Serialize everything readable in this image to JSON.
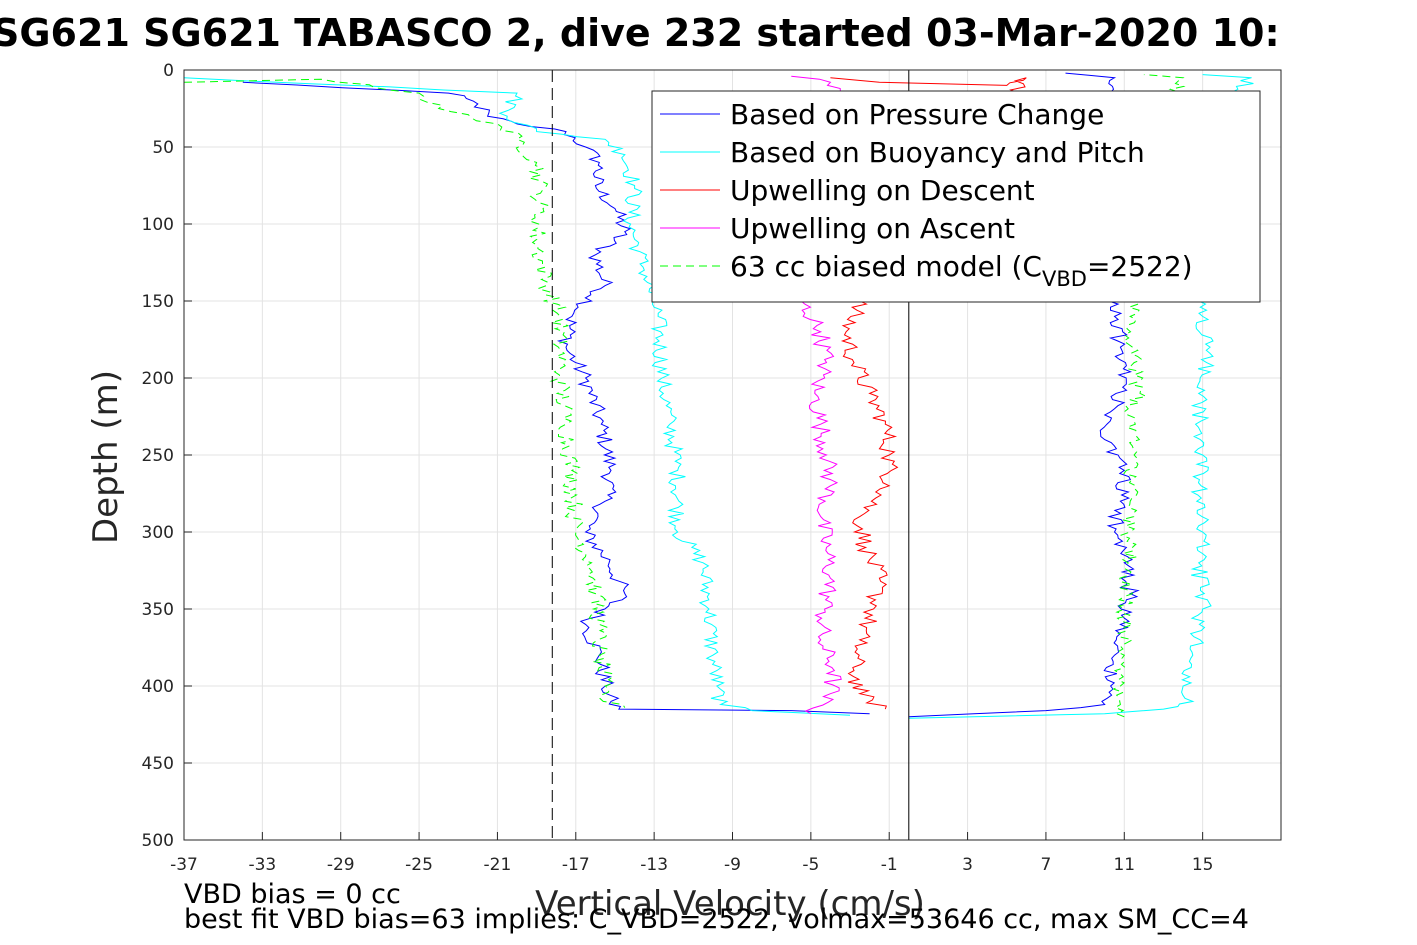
{
  "chart_data": {
    "type": "line",
    "title": "SG621 SG621 TABASCO 2, dive 232 started 03-Mar-2020 10:",
    "xlabel": "Vertical Velocity (cm/s)",
    "ylabel": "Depth (m)",
    "xlim": [
      -37,
      19
    ],
    "ylim": [
      0,
      500
    ],
    "y_reversed": true,
    "grid": true,
    "x_ticks": [
      -37,
      -33,
      -29,
      -25,
      -21,
      -17,
      -13,
      -9,
      -5,
      -1,
      3,
      7,
      11,
      15
    ],
    "y_ticks": [
      0,
      50,
      100,
      150,
      200,
      250,
      300,
      350,
      400,
      450,
      500
    ],
    "vertical_lines": [
      {
        "x": -18.2,
        "style": "dashed",
        "color": "#000000"
      },
      {
        "x": 0,
        "style": "solid",
        "color": "#000000"
      }
    ],
    "legend_position": "top-right",
    "series": [
      {
        "name": "Based on Pressure Change",
        "color": "#0000ff",
        "style": "solid",
        "descent": [
          [
            -34,
            8
          ],
          [
            -23.5,
            15
          ],
          [
            -22,
            22
          ],
          [
            -21.5,
            30
          ],
          [
            -20,
            35
          ],
          [
            -17.5,
            40
          ],
          [
            -16.5,
            50
          ],
          [
            -15.8,
            60
          ],
          [
            -16,
            75
          ],
          [
            -15,
            90
          ],
          [
            -14.5,
            105
          ],
          [
            -16,
            120
          ],
          [
            -15.5,
            140
          ],
          [
            -17.2,
            160
          ],
          [
            -17.5,
            180
          ],
          [
            -16.5,
            200
          ],
          [
            -15.7,
            230
          ],
          [
            -15.2,
            260
          ],
          [
            -15.5,
            280
          ],
          [
            -16.5,
            300
          ],
          [
            -15.3,
            320
          ],
          [
            -14.5,
            340
          ],
          [
            -16.5,
            360
          ],
          [
            -15.8,
            380
          ],
          [
            -15.5,
            400
          ],
          [
            -15.2,
            410
          ],
          [
            -14.8,
            415
          ],
          [
            -6,
            416
          ],
          [
            -2,
            418
          ]
        ],
        "ascent": [
          [
            0,
            420
          ],
          [
            7,
            416
          ],
          [
            10,
            412
          ],
          [
            10.3,
            400
          ],
          [
            10.5,
            380
          ],
          [
            10.8,
            360
          ],
          [
            11.3,
            340
          ],
          [
            11,
            320
          ],
          [
            10.5,
            300
          ],
          [
            10.8,
            280
          ],
          [
            11,
            260
          ],
          [
            10,
            240
          ],
          [
            10.5,
            220
          ],
          [
            11.1,
            200
          ],
          [
            10.8,
            180
          ],
          [
            10.5,
            160
          ],
          [
            10.2,
            150
          ],
          [
            10.5,
            130
          ],
          [
            11,
            110
          ],
          [
            12,
            80
          ],
          [
            11,
            40
          ],
          [
            10.8,
            20
          ],
          [
            10.5,
            5
          ],
          [
            8,
            2
          ]
        ]
      },
      {
        "name": "Based on Buoyancy and Pitch",
        "color": "#00ffff",
        "style": "solid",
        "descent": [
          [
            -37,
            5
          ],
          [
            -20,
            15
          ],
          [
            -20.5,
            30
          ],
          [
            -19,
            40
          ],
          [
            -15.5,
            45
          ],
          [
            -14.5,
            55
          ],
          [
            -14,
            75
          ],
          [
            -14.2,
            100
          ],
          [
            -13.5,
            130
          ],
          [
            -12.8,
            160
          ],
          [
            -12.6,
            200
          ],
          [
            -12.2,
            230
          ],
          [
            -11.8,
            260
          ],
          [
            -11.8,
            300
          ],
          [
            -10.5,
            320
          ],
          [
            -10.2,
            350
          ],
          [
            -10,
            380
          ],
          [
            -9.8,
            400
          ],
          [
            -9.6,
            412
          ],
          [
            -8,
            416
          ],
          [
            -3,
            419
          ]
        ],
        "ascent": [
          [
            0,
            421
          ],
          [
            10,
            418
          ],
          [
            13,
            415
          ],
          [
            14.5,
            410
          ],
          [
            14,
            400
          ],
          [
            14.5,
            380
          ],
          [
            15,
            350
          ],
          [
            14.8,
            320
          ],
          [
            15,
            300
          ],
          [
            14.7,
            280
          ],
          [
            15,
            250
          ],
          [
            14.8,
            210
          ],
          [
            15.2,
            190
          ],
          [
            15,
            160
          ],
          [
            15,
            120
          ],
          [
            16.5,
            80
          ],
          [
            17.5,
            45
          ],
          [
            16.5,
            20
          ],
          [
            17.5,
            5
          ],
          [
            15,
            3
          ]
        ]
      },
      {
        "name": "Upwelling on Descent",
        "color": "#ff0000",
        "style": "solid",
        "descent": [
          [
            -4,
            5
          ],
          [
            -1.5,
            8
          ],
          [
            5,
            10
          ],
          [
            6,
            5
          ],
          [
            -2.5,
            150
          ],
          [
            -3.2,
            170
          ],
          [
            -2.8,
            190
          ],
          [
            -2,
            210
          ],
          [
            -1.2,
            230
          ],
          [
            -1,
            250
          ],
          [
            -1,
            270
          ],
          [
            -2.5,
            290
          ],
          [
            -2.2,
            310
          ],
          [
            -1.5,
            330
          ],
          [
            -1.8,
            350
          ],
          [
            -2.5,
            370
          ],
          [
            -2.8,
            390
          ],
          [
            -2.5,
            405
          ],
          [
            -1.2,
            415
          ]
        ]
      },
      {
        "name": "Upwelling on Ascent",
        "color": "#ff00ff",
        "style": "solid",
        "descent": [
          [
            -6,
            4
          ],
          [
            -4,
            8
          ],
          [
            -3.5,
            12
          ],
          [
            -5.5,
            150
          ],
          [
            -4.5,
            170
          ],
          [
            -4.2,
            190
          ],
          [
            -4.8,
            210
          ],
          [
            -4.5,
            230
          ],
          [
            -4.2,
            250
          ],
          [
            -4,
            270
          ],
          [
            -4.5,
            290
          ],
          [
            -4.2,
            310
          ],
          [
            -4,
            330
          ],
          [
            -4.3,
            350
          ],
          [
            -4.5,
            370
          ],
          [
            -3.8,
            390
          ],
          [
            -4,
            405
          ],
          [
            -5,
            418
          ]
        ]
      },
      {
        "name": "63 cc biased model (C_VBD=2522)",
        "color": "#00ff00",
        "style": "dashed",
        "descent": [
          [
            -37,
            8
          ],
          [
            -30,
            6
          ],
          [
            -25,
            15
          ],
          [
            -24,
            25
          ],
          [
            -21,
            35
          ],
          [
            -20,
            45
          ],
          [
            -19,
            60
          ],
          [
            -18.8,
            80
          ],
          [
            -19,
            110
          ],
          [
            -18.5,
            140
          ],
          [
            -17.8,
            160
          ],
          [
            -17.8,
            200
          ],
          [
            -17.5,
            230
          ],
          [
            -17.2,
            260
          ],
          [
            -17,
            300
          ],
          [
            -16.2,
            320
          ],
          [
            -16,
            340
          ],
          [
            -15.8,
            360
          ],
          [
            -15.8,
            380
          ],
          [
            -15.5,
            400
          ],
          [
            -15.6,
            410
          ],
          [
            -14.5,
            414
          ]
        ],
        "ascent": [
          [
            11,
            420
          ],
          [
            10.8,
            412
          ],
          [
            10.8,
            400
          ],
          [
            11,
            380
          ],
          [
            11,
            350
          ],
          [
            11.2,
            320
          ],
          [
            11.3,
            300
          ],
          [
            11.3,
            280
          ],
          [
            11.5,
            250
          ],
          [
            11.2,
            220
          ],
          [
            11.8,
            210
          ],
          [
            11.5,
            190
          ],
          [
            11.3,
            160
          ],
          [
            11.8,
            150
          ],
          [
            13,
            20
          ],
          [
            14,
            5
          ],
          [
            12,
            3
          ]
        ]
      }
    ],
    "legend": {
      "entries": [
        {
          "label": "Based on Pressure Change"
        },
        {
          "label": "Based on Buoyancy and Pitch"
        },
        {
          "label": "Upwelling on Descent"
        },
        {
          "label": "Upwelling on Ascent"
        },
        {
          "label_main": "63 cc biased model (C",
          "label_sub": "VBD",
          "label_end": "=2522)"
        }
      ]
    }
  },
  "footer": {
    "line1": "VBD bias = 0 cc",
    "line2": "best fit VBD bias=63 implies: C_VBD=2522, volmax=53646 cc, max SM_CC=4"
  }
}
